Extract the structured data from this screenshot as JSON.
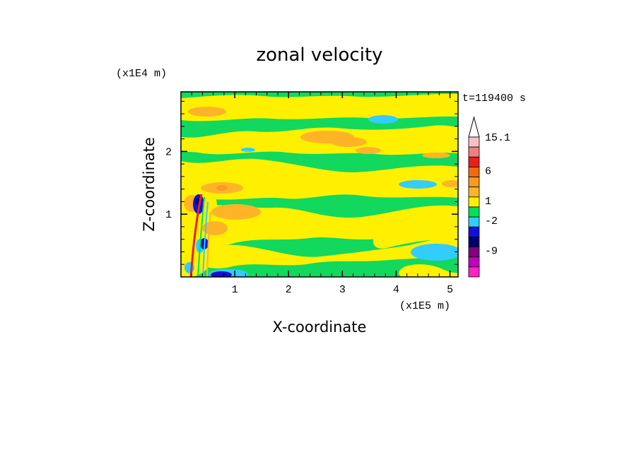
{
  "chart_data": {
    "type": "heatmap",
    "title": "zonal velocity",
    "xlabel": "X-coordinate",
    "ylabel": "Z-coordinate",
    "x_unit": "(x1E5 m)",
    "y_unit": "(x1E4 m)",
    "time_label": "t=119400 s",
    "xlim": [
      0,
      5.15
    ],
    "ylim": [
      0,
      2.95
    ],
    "x_ticks": [
      "1",
      "2",
      "3",
      "4",
      "5"
    ],
    "y_ticks": [
      "1",
      "2"
    ],
    "colorbar": {
      "labels": [
        "15.1",
        "6",
        "1",
        "-2",
        "-9"
      ],
      "colors": [
        "#f7c2c2",
        "#f08080",
        "#e8201c",
        "#f06a10",
        "#fa9a22",
        "#ffb428",
        "#fff000",
        "#00e05a",
        "#33ccff",
        "#1010d8",
        "#00006e",
        "#800080",
        "#c000c0",
        "#ff20c8"
      ]
    }
  }
}
